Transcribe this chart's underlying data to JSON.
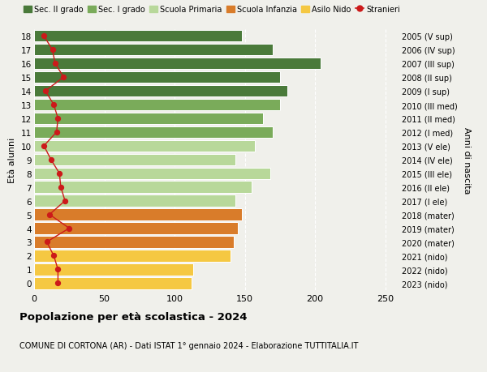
{
  "ages": [
    18,
    17,
    16,
    15,
    14,
    13,
    12,
    11,
    10,
    9,
    8,
    7,
    6,
    5,
    4,
    3,
    2,
    1,
    0
  ],
  "bar_values": [
    148,
    170,
    204,
    175,
    180,
    175,
    163,
    170,
    157,
    143,
    168,
    155,
    143,
    148,
    145,
    142,
    140,
    113,
    112
  ],
  "stranieri_values": [
    7,
    13,
    15,
    21,
    8,
    14,
    17,
    16,
    7,
    12,
    18,
    19,
    22,
    11,
    25,
    9,
    14,
    17,
    17
  ],
  "right_labels": [
    "2005 (V sup)",
    "2006 (IV sup)",
    "2007 (III sup)",
    "2008 (II sup)",
    "2009 (I sup)",
    "2010 (III med)",
    "2011 (II med)",
    "2012 (I med)",
    "2013 (V ele)",
    "2014 (IV ele)",
    "2015 (III ele)",
    "2016 (II ele)",
    "2017 (I ele)",
    "2018 (mater)",
    "2019 (mater)",
    "2020 (mater)",
    "2021 (nido)",
    "2022 (nido)",
    "2023 (nido)"
  ],
  "bar_colors": [
    "#4a7a3a",
    "#4a7a3a",
    "#4a7a3a",
    "#4a7a3a",
    "#4a7a3a",
    "#7aab5a",
    "#7aab5a",
    "#7aab5a",
    "#b8d89a",
    "#b8d89a",
    "#b8d89a",
    "#b8d89a",
    "#b8d89a",
    "#d97c2a",
    "#d97c2a",
    "#d97c2a",
    "#f5c842",
    "#f5c842",
    "#f5c842"
  ],
  "legend_labels": [
    "Sec. II grado",
    "Sec. I grado",
    "Scuola Primaria",
    "Scuola Infanzia",
    "Asilo Nido",
    "Stranieri"
  ],
  "legend_colors": [
    "#4a7a3a",
    "#7aab5a",
    "#b8d89a",
    "#d97c2a",
    "#f5c842",
    "#cc1a1a"
  ],
  "title": "Popolazione per età scolastica - 2024",
  "subtitle": "COMUNE DI CORTONA (AR) - Dati ISTAT 1° gennaio 2024 - Elaborazione TUTTITALIA.IT",
  "ylabel_left": "Età alunni",
  "ylabel_right": "Anni di nascita",
  "xlim": [
    0,
    260
  ],
  "background_color": "#f0f0eb",
  "plot_bg": "#f0f0eb"
}
